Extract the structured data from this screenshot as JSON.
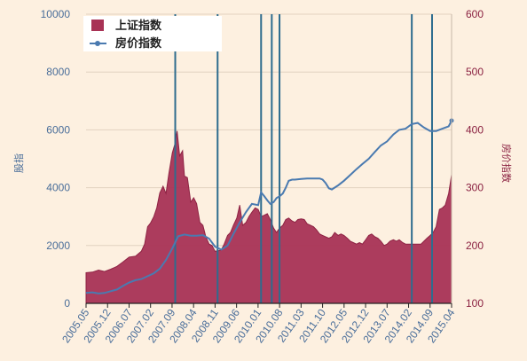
{
  "chart_data": {
    "type": "area",
    "x_categories": [
      "2005.05",
      "2005.12",
      "2006.07",
      "2007.02",
      "2007.09",
      "2008.04",
      "2008.11",
      "2009.06",
      "2010.01",
      "2010.08",
      "2011.03",
      "2011.10",
      "2012.05",
      "2012.12",
      "2013.07",
      "2014.02",
      "2014.09",
      "2015.04"
    ],
    "ylim_left": [
      0,
      10000
    ],
    "ylim_right": [
      100,
      600
    ],
    "yticks_left": [
      "0",
      "2000",
      "4000",
      "6000",
      "8000",
      "10000"
    ],
    "yticks_right": [
      "100",
      "200",
      "300",
      "400",
      "500",
      "600"
    ],
    "ylabel_left": "股指",
    "ylabel_right": "房价指数",
    "grid": true,
    "legend_position": "top-left",
    "vertical_markers": [
      2007.75,
      2008.9,
      2010.08,
      2010.37,
      2010.58,
      2014.17,
      2014.72
    ],
    "series": [
      {
        "name": "上证指数",
        "axis": "left",
        "style": "area",
        "color": "#a83255",
        "points": [
          [
            2005.33,
            1060
          ],
          [
            2005.5,
            1080
          ],
          [
            2005.67,
            1150
          ],
          [
            2005.83,
            1100
          ],
          [
            2006.0,
            1180
          ],
          [
            2006.17,
            1280
          ],
          [
            2006.33,
            1430
          ],
          [
            2006.5,
            1600
          ],
          [
            2006.67,
            1630
          ],
          [
            2006.83,
            1800
          ],
          [
            2006.92,
            2050
          ],
          [
            2007.0,
            2650
          ],
          [
            2007.08,
            2780
          ],
          [
            2007.17,
            3000
          ],
          [
            2007.25,
            3300
          ],
          [
            2007.33,
            3820
          ],
          [
            2007.42,
            4050
          ],
          [
            2007.5,
            3800
          ],
          [
            2007.58,
            4500
          ],
          [
            2007.67,
            5200
          ],
          [
            2007.75,
            5550
          ],
          [
            2007.8,
            5960
          ],
          [
            2007.87,
            5100
          ],
          [
            2007.95,
            5280
          ],
          [
            2008.0,
            4400
          ],
          [
            2008.08,
            4350
          ],
          [
            2008.17,
            3500
          ],
          [
            2008.25,
            3650
          ],
          [
            2008.33,
            3450
          ],
          [
            2008.42,
            2800
          ],
          [
            2008.5,
            2700
          ],
          [
            2008.58,
            2300
          ],
          [
            2008.67,
            2050
          ],
          [
            2008.75,
            2000
          ],
          [
            2008.83,
            1800
          ],
          [
            2008.92,
            1820
          ],
          [
            2009.0,
            1850
          ],
          [
            2009.08,
            2050
          ],
          [
            2009.17,
            2350
          ],
          [
            2009.25,
            2450
          ],
          [
            2009.33,
            2700
          ],
          [
            2009.42,
            2950
          ],
          [
            2009.5,
            3400
          ],
          [
            2009.58,
            2700
          ],
          [
            2009.67,
            2800
          ],
          [
            2009.75,
            3000
          ],
          [
            2009.83,
            3150
          ],
          [
            2009.92,
            3300
          ],
          [
            2010.0,
            3250
          ],
          [
            2010.08,
            3000
          ],
          [
            2010.17,
            3050
          ],
          [
            2010.25,
            3100
          ],
          [
            2010.33,
            2900
          ],
          [
            2010.42,
            2600
          ],
          [
            2010.5,
            2450
          ],
          [
            2010.58,
            2600
          ],
          [
            2010.67,
            2700
          ],
          [
            2010.75,
            2900
          ],
          [
            2010.83,
            2950
          ],
          [
            2010.92,
            2850
          ],
          [
            2011.0,
            2800
          ],
          [
            2011.08,
            2900
          ],
          [
            2011.17,
            2920
          ],
          [
            2011.25,
            2900
          ],
          [
            2011.33,
            2750
          ],
          [
            2011.42,
            2700
          ],
          [
            2011.5,
            2650
          ],
          [
            2011.58,
            2550
          ],
          [
            2011.67,
            2400
          ],
          [
            2011.75,
            2350
          ],
          [
            2011.83,
            2300
          ],
          [
            2011.92,
            2250
          ],
          [
            2012.0,
            2300
          ],
          [
            2012.08,
            2450
          ],
          [
            2012.17,
            2350
          ],
          [
            2012.25,
            2400
          ],
          [
            2012.33,
            2350
          ],
          [
            2012.42,
            2250
          ],
          [
            2012.5,
            2150
          ],
          [
            2012.58,
            2100
          ],
          [
            2012.67,
            2050
          ],
          [
            2012.75,
            2100
          ],
          [
            2012.83,
            2050
          ],
          [
            2012.92,
            2200
          ],
          [
            2013.0,
            2350
          ],
          [
            2013.08,
            2400
          ],
          [
            2013.17,
            2300
          ],
          [
            2013.25,
            2250
          ],
          [
            2013.33,
            2150
          ],
          [
            2013.42,
            2000
          ],
          [
            2013.5,
            2050
          ],
          [
            2013.58,
            2150
          ],
          [
            2013.67,
            2200
          ],
          [
            2013.75,
            2150
          ],
          [
            2013.83,
            2200
          ],
          [
            2013.92,
            2100
          ],
          [
            2014.0,
            2050
          ],
          [
            2014.08,
            2050
          ],
          [
            2014.17,
            2050
          ],
          [
            2014.25,
            2050
          ],
          [
            2014.33,
            2050
          ],
          [
            2014.42,
            2050
          ],
          [
            2014.5,
            2150
          ],
          [
            2014.58,
            2250
          ],
          [
            2014.67,
            2350
          ],
          [
            2014.75,
            2450
          ],
          [
            2014.83,
            2650
          ],
          [
            2014.92,
            3250
          ],
          [
            2015.0,
            3300
          ],
          [
            2015.08,
            3400
          ],
          [
            2015.17,
            3800
          ],
          [
            2015.25,
            4450
          ]
        ]
      },
      {
        "name": "房价指数",
        "axis": "right",
        "style": "line",
        "color": "#4a7ab0",
        "points": [
          [
            2005.33,
            118
          ],
          [
            2005.5,
            119
          ],
          [
            2005.67,
            117
          ],
          [
            2005.83,
            118
          ],
          [
            2006.0,
            121
          ],
          [
            2006.17,
            124
          ],
          [
            2006.33,
            130
          ],
          [
            2006.5,
            136
          ],
          [
            2006.67,
            140
          ],
          [
            2006.83,
            142
          ],
          [
            2007.0,
            147
          ],
          [
            2007.17,
            152
          ],
          [
            2007.33,
            160
          ],
          [
            2007.5,
            175
          ],
          [
            2007.67,
            195
          ],
          [
            2007.83,
            216
          ],
          [
            2008.0,
            219
          ],
          [
            2008.17,
            217
          ],
          [
            2008.33,
            217
          ],
          [
            2008.5,
            218
          ],
          [
            2008.67,
            212
          ],
          [
            2008.83,
            198
          ],
          [
            2009.0,
            193
          ],
          [
            2009.17,
            200
          ],
          [
            2009.33,
            220
          ],
          [
            2009.5,
            240
          ],
          [
            2009.67,
            258
          ],
          [
            2009.83,
            272
          ],
          [
            2010.0,
            270
          ],
          [
            2010.08,
            292
          ],
          [
            2010.17,
            285
          ],
          [
            2010.25,
            278
          ],
          [
            2010.33,
            272
          ],
          [
            2010.42,
            275
          ],
          [
            2010.5,
            282
          ],
          [
            2010.58,
            285
          ],
          [
            2010.67,
            290
          ],
          [
            2010.75,
            300
          ],
          [
            2010.83,
            312
          ],
          [
            2010.92,
            314
          ],
          [
            2011.0,
            314
          ],
          [
            2011.17,
            315
          ],
          [
            2011.33,
            316
          ],
          [
            2011.5,
            316
          ],
          [
            2011.67,
            316
          ],
          [
            2011.75,
            314
          ],
          [
            2011.83,
            308
          ],
          [
            2011.92,
            299
          ],
          [
            2012.0,
            297
          ],
          [
            2012.17,
            304
          ],
          [
            2012.33,
            312
          ],
          [
            2012.5,
            322
          ],
          [
            2012.67,
            332
          ],
          [
            2012.83,
            341
          ],
          [
            2013.0,
            350
          ],
          [
            2013.17,
            362
          ],
          [
            2013.33,
            373
          ],
          [
            2013.5,
            380
          ],
          [
            2013.67,
            392
          ],
          [
            2013.83,
            400
          ],
          [
            2014.0,
            402
          ],
          [
            2014.17,
            410
          ],
          [
            2014.33,
            412
          ],
          [
            2014.5,
            404
          ],
          [
            2014.67,
            398
          ],
          [
            2014.83,
            398
          ],
          [
            2015.0,
            402
          ],
          [
            2015.17,
            406
          ],
          [
            2015.25,
            416
          ]
        ]
      }
    ]
  }
}
